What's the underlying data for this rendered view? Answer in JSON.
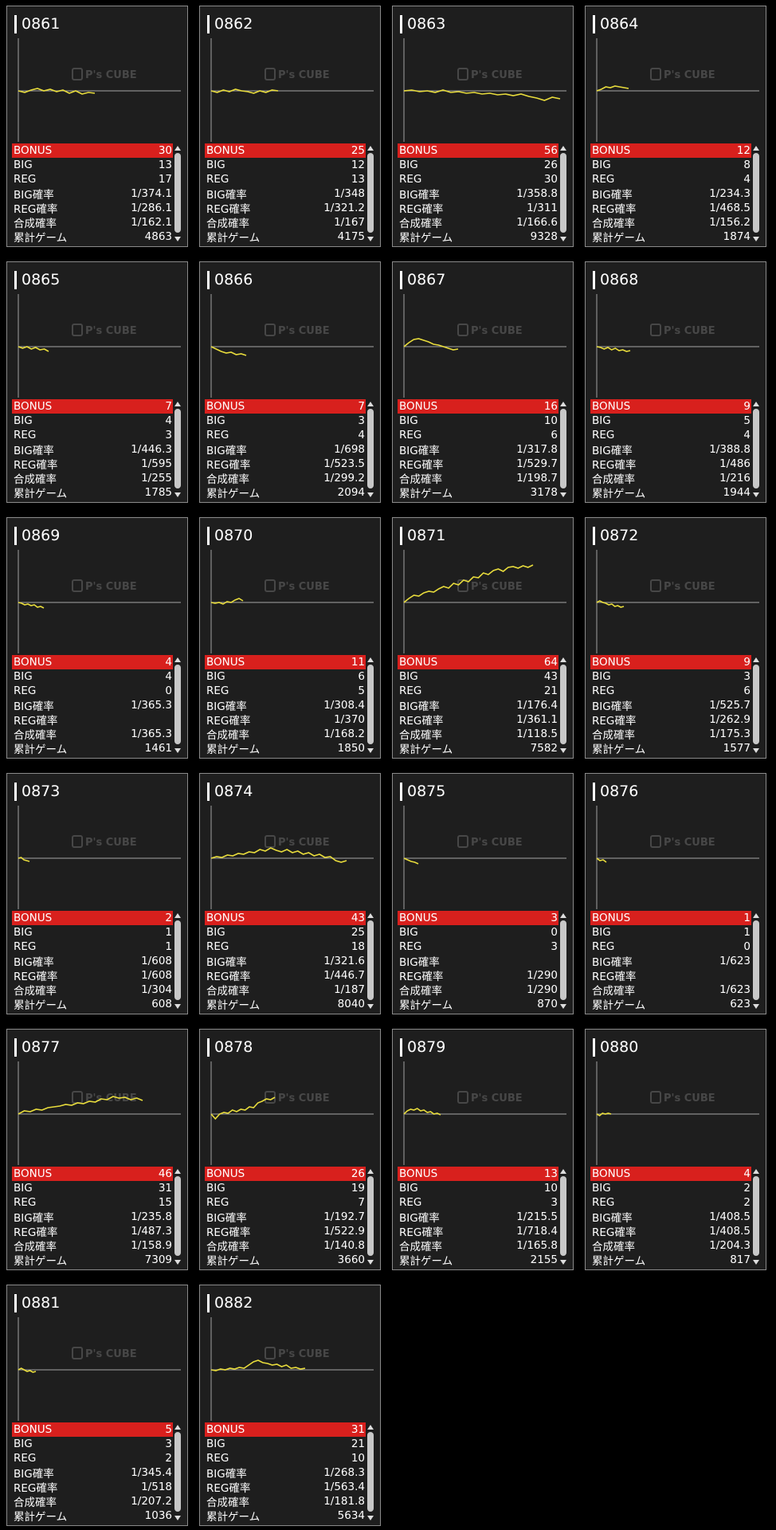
{
  "watermark": {
    "brand": "P's CUBE"
  },
  "labels": {
    "bonus": "BONUS",
    "big": "BIG",
    "reg": "REG",
    "big_rate": "BIG確率",
    "reg_rate": "REG確率",
    "combined_rate": "合成確率",
    "total_games": "累計ゲーム"
  },
  "colors": {
    "background": "#000000",
    "card": "#1e1e1e",
    "bonus_row": "#d8201d",
    "graph_line": "#e8dc3c",
    "axis": "#8c8c8c"
  },
  "machines": [
    {
      "id": "0861",
      "bonus": "30",
      "big": "13",
      "reg": "17",
      "big_rate": "1/374.1",
      "reg_rate": "1/286.1",
      "combined_rate": "1/162.1",
      "total_games": "4863",
      "trend": [
        0,
        -2,
        1,
        3,
        0,
        2,
        -1,
        1,
        -3,
        0,
        -4,
        -2,
        -3
      ],
      "trend_width": 0.48
    },
    {
      "id": "0862",
      "bonus": "25",
      "big": "12",
      "reg": "13",
      "big_rate": "1/348",
      "reg_rate": "1/321.2",
      "combined_rate": "1/167",
      "total_games": "4175",
      "trend": [
        0,
        -2,
        1,
        -1,
        2,
        0,
        -1,
        -3,
        0,
        -2,
        1,
        0
      ],
      "trend_width": 0.42
    },
    {
      "id": "0863",
      "bonus": "56",
      "big": "26",
      "reg": "30",
      "big_rate": "1/358.8",
      "reg_rate": "1/311",
      "combined_rate": "1/166.6",
      "total_games": "9328",
      "trend": [
        0,
        1,
        -1,
        0,
        -2,
        1,
        -2,
        -1,
        -3,
        -2,
        -4,
        -3,
        -5,
        -4,
        -6,
        -4,
        -7,
        -9,
        -12,
        -8,
        -10
      ],
      "trend_width": 0.98
    },
    {
      "id": "0864",
      "bonus": "12",
      "big": "8",
      "reg": "4",
      "big_rate": "1/234.3",
      "reg_rate": "1/468.5",
      "combined_rate": "1/156.2",
      "total_games": "1874",
      "trend": [
        0,
        2,
        5,
        4,
        6,
        5,
        4,
        3
      ],
      "trend_width": 0.2
    },
    {
      "id": "0865",
      "bonus": "7",
      "big": "4",
      "reg": "3",
      "big_rate": "1/446.3",
      "reg_rate": "1/595",
      "combined_rate": "1/255",
      "total_games": "1785",
      "trend": [
        0,
        -2,
        0,
        -3,
        -1,
        -4,
        -3,
        -6
      ],
      "trend_width": 0.19
    },
    {
      "id": "0866",
      "bonus": "7",
      "big": "3",
      "reg": "4",
      "big_rate": "1/698",
      "reg_rate": "1/523.5",
      "combined_rate": "1/299.2",
      "total_games": "2094",
      "trend": [
        0,
        -3,
        -6,
        -8,
        -7,
        -10,
        -9,
        -11
      ],
      "trend_width": 0.22
    },
    {
      "id": "0867",
      "bonus": "16",
      "big": "10",
      "reg": "6",
      "big_rate": "1/317.8",
      "reg_rate": "1/529.7",
      "combined_rate": "1/198.7",
      "total_games": "3178",
      "trend": [
        0,
        5,
        9,
        10,
        8,
        6,
        3,
        2,
        0,
        -2,
        -4,
        -3
      ],
      "trend_width": 0.34
    },
    {
      "id": "0868",
      "bonus": "9",
      "big": "5",
      "reg": "4",
      "big_rate": "1/388.8",
      "reg_rate": "1/486",
      "combined_rate": "1/216",
      "total_games": "1944",
      "trend": [
        0,
        -1,
        -3,
        -1,
        -4,
        -2,
        -5,
        -4,
        -6,
        -5
      ],
      "trend_width": 0.21
    },
    {
      "id": "0869",
      "bonus": "4",
      "big": "4",
      "reg": "0",
      "big_rate": "1/365.3",
      "reg_rate": "",
      "combined_rate": "1/365.3",
      "total_games": "1461",
      "trend": [
        0,
        -1,
        -3,
        -2,
        -4,
        -3,
        -6,
        -5,
        -7
      ],
      "trend_width": 0.16
    },
    {
      "id": "0870",
      "bonus": "11",
      "big": "6",
      "reg": "5",
      "big_rate": "1/308.4",
      "reg_rate": "1/370",
      "combined_rate": "1/168.2",
      "total_games": "1850",
      "trend": [
        0,
        -1,
        0,
        -2,
        1,
        0,
        3,
        5,
        2
      ],
      "trend_width": 0.2
    },
    {
      "id": "0871",
      "bonus": "64",
      "big": "43",
      "reg": "21",
      "big_rate": "1/176.4",
      "reg_rate": "1/361.1",
      "combined_rate": "1/118.5",
      "total_games": "7582",
      "trend": [
        0,
        5,
        9,
        8,
        12,
        14,
        13,
        17,
        20,
        18,
        24,
        22,
        28,
        26,
        32,
        31,
        37,
        35,
        40,
        42,
        39,
        44,
        45,
        43,
        46,
        44,
        47
      ],
      "trend_width": 0.81
    },
    {
      "id": "0872",
      "bonus": "9",
      "big": "3",
      "reg": "6",
      "big_rate": "1/525.7",
      "reg_rate": "1/262.9",
      "combined_rate": "1/175.3",
      "total_games": "1577",
      "trend": [
        0,
        2,
        0,
        -1,
        -3,
        -2,
        -5,
        -4,
        -6,
        -5
      ],
      "trend_width": 0.17
    },
    {
      "id": "0873",
      "bonus": "2",
      "big": "1",
      "reg": "1",
      "big_rate": "1/608",
      "reg_rate": "1/608",
      "combined_rate": "1/304",
      "total_games": "608",
      "trend": [
        0,
        1,
        -2,
        -3,
        -4
      ],
      "trend_width": 0.07
    },
    {
      "id": "0874",
      "bonus": "43",
      "big": "25",
      "reg": "18",
      "big_rate": "1/321.6",
      "reg_rate": "1/446.7",
      "combined_rate": "1/187",
      "total_games": "8040",
      "trend": [
        0,
        2,
        1,
        4,
        3,
        6,
        5,
        8,
        7,
        11,
        9,
        13,
        10,
        8,
        11,
        7,
        9,
        5,
        7,
        3,
        5,
        1,
        2,
        -3,
        -5,
        -3
      ],
      "trend_width": 0.85
    },
    {
      "id": "0875",
      "bonus": "3",
      "big": "0",
      "reg": "3",
      "big_rate": "",
      "reg_rate": "1/290",
      "combined_rate": "1/290",
      "total_games": "870",
      "trend": [
        0,
        -2,
        -4,
        -5,
        -7
      ],
      "trend_width": 0.09
    },
    {
      "id": "0876",
      "bonus": "1",
      "big": "1",
      "reg": "0",
      "big_rate": "1/623",
      "reg_rate": "",
      "combined_rate": "1/623",
      "total_games": "623",
      "trend": [
        0,
        -3,
        -2,
        -5
      ],
      "trend_width": 0.06
    },
    {
      "id": "0877",
      "bonus": "46",
      "big": "31",
      "reg": "15",
      "big_rate": "1/235.8",
      "reg_rate": "1/487.3",
      "combined_rate": "1/158.9",
      "total_games": "7309",
      "trend": [
        0,
        4,
        3,
        6,
        5,
        8,
        9,
        10,
        12,
        11,
        14,
        13,
        16,
        15,
        19,
        18,
        22,
        20,
        21,
        18,
        20,
        17
      ],
      "trend_width": 0.78
    },
    {
      "id": "0878",
      "bonus": "26",
      "big": "19",
      "reg": "7",
      "big_rate": "1/192.7",
      "reg_rate": "1/522.9",
      "combined_rate": "1/140.8",
      "total_games": "3660",
      "trend": [
        0,
        -6,
        0,
        2,
        1,
        5,
        3,
        6,
        5,
        9,
        8,
        14,
        16,
        19,
        18,
        21
      ],
      "trend_width": 0.4
    },
    {
      "id": "0879",
      "bonus": "13",
      "big": "10",
      "reg": "3",
      "big_rate": "1/215.5",
      "reg_rate": "1/718.4",
      "combined_rate": "1/165.8",
      "total_games": "2155",
      "trend": [
        0,
        4,
        6,
        5,
        7,
        4,
        5,
        2,
        3,
        0,
        1,
        -1
      ],
      "trend_width": 0.23
    },
    {
      "id": "0880",
      "bonus": "4",
      "big": "2",
      "reg": "2",
      "big_rate": "1/408.5",
      "reg_rate": "1/408.5",
      "combined_rate": "1/204.3",
      "total_games": "817",
      "trend": [
        0,
        -2,
        1,
        0,
        1,
        0
      ],
      "trend_width": 0.09
    },
    {
      "id": "0881",
      "bonus": "5",
      "big": "3",
      "reg": "2",
      "big_rate": "1/345.4",
      "reg_rate": "1/518",
      "combined_rate": "1/207.2",
      "total_games": "1036",
      "trend": [
        0,
        2,
        0,
        -2,
        -1,
        -3,
        -2
      ],
      "trend_width": 0.11
    },
    {
      "id": "0882",
      "bonus": "31",
      "big": "21",
      "reg": "10",
      "big_rate": "1/268.3",
      "reg_rate": "1/563.4",
      "combined_rate": "1/181.8",
      "total_games": "5634",
      "trend": [
        0,
        -1,
        1,
        0,
        2,
        1,
        3,
        2,
        6,
        10,
        12,
        9,
        8,
        6,
        7,
        4,
        6,
        2,
        3,
        1,
        2
      ],
      "trend_width": 0.59
    }
  ]
}
